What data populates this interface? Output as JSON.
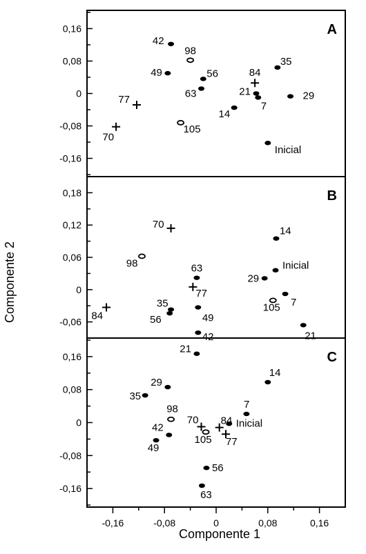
{
  "chart_data": {
    "type": "scatter",
    "xlabel": "Componente 1",
    "ylabel": "Componente 2",
    "xlim": [
      -0.2,
      0.2
    ],
    "xticks": [
      -0.16,
      -0.08,
      0.0,
      0.08,
      0.16
    ],
    "xtick_labels": [
      "-0,16",
      "-0,08",
      "0",
      "0,08",
      "0,16"
    ],
    "panels": [
      {
        "letter": "A",
        "ylim": [
          -0.205,
          0.205
        ],
        "yticks": [
          0.16,
          0.08,
          0.0,
          -0.08,
          -0.16
        ],
        "ytick_labels": [
          "0,16",
          "0,08",
          "0",
          "-0,08",
          "-0,16"
        ],
        "points": [
          {
            "label": "42",
            "x": -0.07,
            "y": 0.122,
            "marker": "dot"
          },
          {
            "label": "98",
            "x": -0.04,
            "y": 0.082,
            "marker": "ring"
          },
          {
            "label": "49",
            "x": -0.075,
            "y": 0.05,
            "marker": "dot"
          },
          {
            "label": "56",
            "x": -0.02,
            "y": 0.036,
            "marker": "dot"
          },
          {
            "label": "63",
            "x": -0.023,
            "y": 0.012,
            "marker": "dot"
          },
          {
            "label": "35",
            "x": 0.095,
            "y": 0.064,
            "marker": "dot"
          },
          {
            "label": "84",
            "x": 0.06,
            "y": 0.026,
            "marker": "plus"
          },
          {
            "label": "21",
            "x": 0.062,
            "y": 0.0,
            "marker": "dot"
          },
          {
            "label": "7",
            "x": 0.065,
            "y": -0.01,
            "marker": "dot"
          },
          {
            "label": "29",
            "x": 0.115,
            "y": -0.007,
            "marker": "dot"
          },
          {
            "label": "14",
            "x": 0.028,
            "y": -0.035,
            "marker": "dot"
          },
          {
            "label": "77",
            "x": -0.123,
            "y": -0.028,
            "marker": "plus"
          },
          {
            "label": "70",
            "x": -0.155,
            "y": -0.082,
            "marker": "plus"
          },
          {
            "label": "105",
            "x": -0.055,
            "y": -0.072,
            "marker": "ring"
          },
          {
            "label": "Inicial",
            "x": 0.08,
            "y": -0.122,
            "marker": "dot"
          }
        ]
      },
      {
        "letter": "B",
        "ylim": [
          -0.09,
          0.21
        ],
        "yticks": [
          0.18,
          0.12,
          0.06,
          0.0,
          -0.06
        ],
        "ytick_labels": [
          "0,18",
          "0,12",
          "0,06",
          "0",
          "-0,06"
        ],
        "points": [
          {
            "label": "70",
            "x": -0.07,
            "y": 0.114,
            "marker": "plus"
          },
          {
            "label": "98",
            "x": -0.115,
            "y": 0.062,
            "marker": "ring"
          },
          {
            "label": "63",
            "x": -0.03,
            "y": 0.022,
            "marker": "dot"
          },
          {
            "label": "77",
            "x": -0.036,
            "y": 0.005,
            "marker": "plus"
          },
          {
            "label": "35",
            "x": -0.07,
            "y": -0.037,
            "marker": "dot"
          },
          {
            "label": "56",
            "x": -0.072,
            "y": -0.044,
            "marker": "dot"
          },
          {
            "label": "49",
            "x": -0.028,
            "y": -0.033,
            "marker": "dot"
          },
          {
            "label": "42",
            "x": -0.028,
            "y": -0.08,
            "marker": "dot"
          },
          {
            "label": "84",
            "x": -0.17,
            "y": -0.033,
            "marker": "plus"
          },
          {
            "label": "14",
            "x": 0.093,
            "y": 0.095,
            "marker": "dot"
          },
          {
            "label": "Inicial",
            "x": 0.092,
            "y": 0.036,
            "marker": "dot"
          },
          {
            "label": "29",
            "x": 0.075,
            "y": 0.021,
            "marker": "dot"
          },
          {
            "label": "105",
            "x": 0.088,
            "y": -0.02,
            "marker": "ring"
          },
          {
            "label": "7",
            "x": 0.107,
            "y": -0.008,
            "marker": "dot"
          },
          {
            "label": "21",
            "x": 0.135,
            "y": -0.066,
            "marker": "dot"
          }
        ]
      },
      {
        "letter": "C",
        "ylim": [
          -0.205,
          0.205
        ],
        "yticks": [
          0.16,
          0.08,
          0.0,
          -0.08,
          -0.16
        ],
        "ytick_labels": [
          "0,16",
          "0,08",
          "0",
          "-0,08",
          "-0,16"
        ],
        "points": [
          {
            "label": "21",
            "x": -0.03,
            "y": 0.167,
            "marker": "dot"
          },
          {
            "label": "14",
            "x": 0.08,
            "y": 0.098,
            "marker": "dot"
          },
          {
            "label": "29",
            "x": -0.075,
            "y": 0.086,
            "marker": "dot"
          },
          {
            "label": "35",
            "x": -0.11,
            "y": 0.066,
            "marker": "dot"
          },
          {
            "label": "7",
            "x": 0.047,
            "y": 0.021,
            "marker": "dot"
          },
          {
            "label": "98",
            "x": -0.07,
            "y": 0.008,
            "marker": "ring"
          },
          {
            "label": "Inicial",
            "x": 0.02,
            "y": -0.003,
            "marker": "dot"
          },
          {
            "label": "70",
            "x": -0.023,
            "y": -0.01,
            "marker": "plus"
          },
          {
            "label": "84",
            "x": 0.005,
            "y": -0.012,
            "marker": "plus"
          },
          {
            "label": "105",
            "x": -0.016,
            "y": -0.023,
            "marker": "ring"
          },
          {
            "label": "77",
            "x": 0.015,
            "y": -0.028,
            "marker": "plus"
          },
          {
            "label": "42",
            "x": -0.073,
            "y": -0.03,
            "marker": "dot"
          },
          {
            "label": "49",
            "x": -0.093,
            "y": -0.043,
            "marker": "dot"
          },
          {
            "label": "56",
            "x": -0.015,
            "y": -0.11,
            "marker": "dot"
          },
          {
            "label": "63",
            "x": -0.022,
            "y": -0.153,
            "marker": "dot"
          }
        ]
      }
    ]
  }
}
